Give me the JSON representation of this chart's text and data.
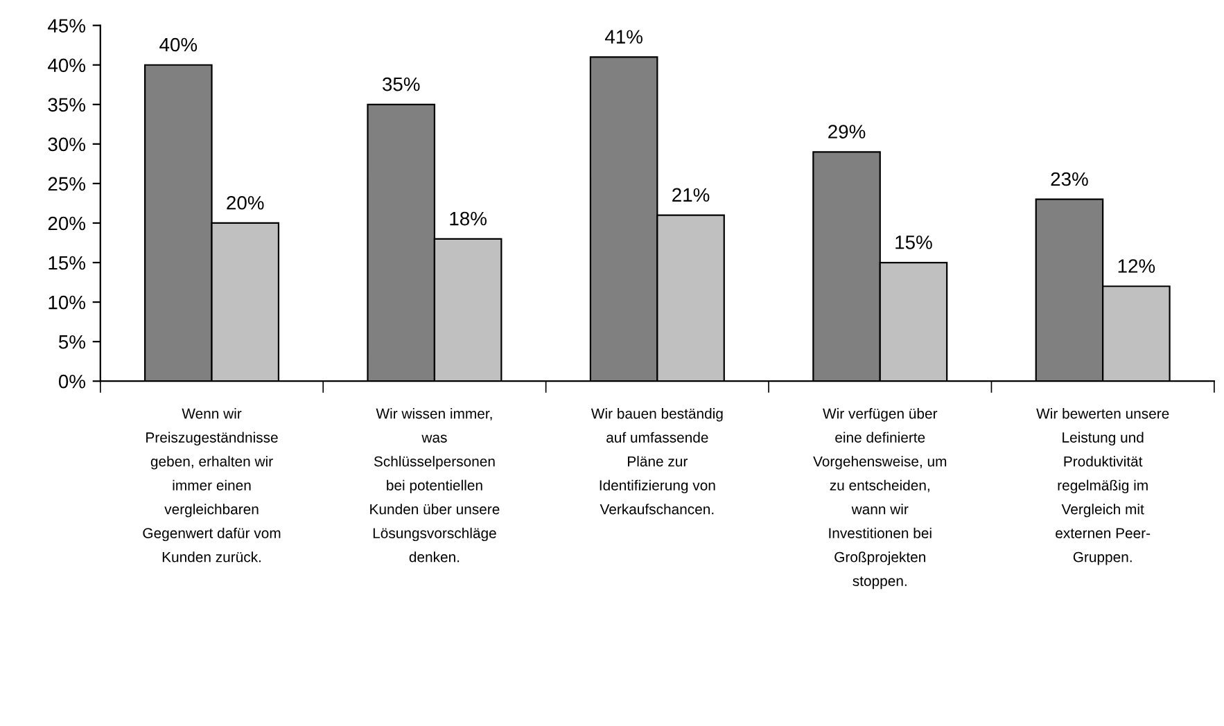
{
  "chart_data": {
    "type": "bar",
    "categories": [
      "Wenn wir\nPreiszugeständnisse\ngeben, erhalten wir\nimmer einen\nvergleichbaren\nGegenwert dafür vom\nKunden zurück.",
      "Wir wissen immer,\nwas\nSchlüsselpersonen\nbei potentiellen\nKunden über unsere\nLösungsvorschläge\ndenken.",
      "Wir bauen beständig\nauf umfassende\nPläne zur\nIdentifizierung von\nVerkaufschancen.",
      "Wir verfügen über\neine definierte\nVorgehensweise, um\nzu entscheiden,\nwann wir\nInvestitionen bei\nGroßprojekten\nstoppen.",
      "Wir bewerten unsere\nLeistung und\nProduktivität\nregelmäßig im\nVergleich mit\nexternen Peer-\nGruppen."
    ],
    "series": [
      {
        "color": "#808080",
        "values": [
          40,
          35,
          41,
          29,
          23
        ],
        "value_labels": [
          "40%",
          "35%",
          "41%",
          "29%",
          "23%"
        ]
      },
      {
        "color": "#c0c0c0",
        "values": [
          20,
          18,
          21,
          15,
          12
        ],
        "value_labels": [
          "20%",
          "18%",
          "21%",
          "15%",
          "12%"
        ]
      }
    ],
    "ylim": [
      0,
      45
    ],
    "yticks": [
      {
        "value": 0,
        "label": "0%"
      },
      {
        "value": 5,
        "label": "5%"
      },
      {
        "value": 10,
        "label": "10%"
      },
      {
        "value": 15,
        "label": "15%"
      },
      {
        "value": 20,
        "label": "20%"
      },
      {
        "value": 25,
        "label": "25%"
      },
      {
        "value": 30,
        "label": "30%"
      },
      {
        "value": 35,
        "label": "35%"
      },
      {
        "value": 40,
        "label": "40%"
      },
      {
        "value": 45,
        "label": "45%"
      }
    ],
    "grid": false
  }
}
